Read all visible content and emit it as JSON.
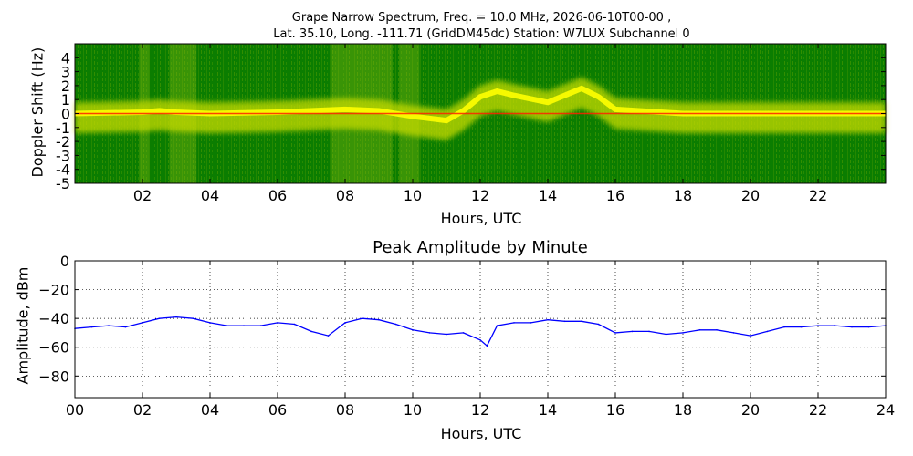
{
  "chart_data": [
    {
      "type": "heatmap",
      "title_line1": "Grape Narrow Spectrum, Freq. = 10.0 MHz, 2026-06-10T00-00 ,",
      "title_line2": "Lat.  35.10, Long. -111.71 (GridDM45dc) Station: W7LUX Subchannel 0",
      "xlabel": "Hours, UTC",
      "ylabel": "Doppler Shift (Hz)",
      "xlim": [
        0,
        24
      ],
      "ylim": [
        -5,
        5
      ],
      "x_ticks": [
        "02",
        "04",
        "06",
        "08",
        "10",
        "12",
        "14",
        "16",
        "18",
        "20",
        "22"
      ],
      "x_tick_values": [
        2,
        4,
        6,
        8,
        10,
        12,
        14,
        16,
        18,
        20,
        22
      ],
      "y_ticks": [
        "4",
        "3",
        "2",
        "1",
        "0",
        "-1",
        "-2",
        "-3",
        "-4",
        "-5"
      ],
      "y_tick_values": [
        4,
        3,
        2,
        1,
        0,
        -1,
        -2,
        -3,
        -4,
        -5
      ],
      "carrier_doppler_hz": [
        [
          0,
          0
        ],
        [
          2,
          0.1
        ],
        [
          2.5,
          0.2
        ],
        [
          3,
          0.1
        ],
        [
          4,
          0
        ],
        [
          6,
          0.1
        ],
        [
          8,
          0.3
        ],
        [
          9,
          0.2
        ],
        [
          10,
          -0.2
        ],
        [
          11,
          -0.5
        ],
        [
          11.5,
          0.2
        ],
        [
          12,
          1.2
        ],
        [
          12.5,
          1.6
        ],
        [
          13,
          1.3
        ],
        [
          14,
          0.8
        ],
        [
          15,
          1.8
        ],
        [
          15.5,
          1.2
        ],
        [
          16,
          0.3
        ],
        [
          18,
          0
        ],
        [
          20,
          0
        ],
        [
          22,
          0
        ],
        [
          24,
          0
        ]
      ],
      "colors": {
        "background": "#0b7d00",
        "mid": "#c8dc00",
        "high": "#ffff00",
        "peak": "#ff2000"
      },
      "grid": false
    },
    {
      "type": "line",
      "title": "Peak Amplitude by Minute",
      "xlabel": "Hours, UTC",
      "ylabel": "Amplitude, dBm",
      "xlim": [
        0,
        24
      ],
      "ylim": [
        -95,
        0
      ],
      "x_ticks": [
        "00",
        "02",
        "04",
        "06",
        "08",
        "10",
        "12",
        "14",
        "16",
        "18",
        "20",
        "22",
        "24"
      ],
      "x_tick_values": [
        0,
        2,
        4,
        6,
        8,
        10,
        12,
        14,
        16,
        18,
        20,
        22,
        24
      ],
      "y_ticks": [
        "0",
        "−20",
        "−40",
        "−60",
        "−80"
      ],
      "y_tick_values": [
        0,
        -20,
        -40,
        -60,
        -80
      ],
      "grid": true,
      "series": [
        {
          "color": "#0000ff",
          "x": [
            0,
            0.5,
            1,
            1.5,
            2,
            2.5,
            3,
            3.5,
            4,
            4.5,
            5,
            5.5,
            6,
            6.5,
            7,
            7.5,
            8,
            8.5,
            9,
            9.5,
            10,
            10.5,
            11,
            11.5,
            12,
            12.2,
            12.5,
            13,
            13.5,
            14,
            14.5,
            15,
            15.5,
            16,
            16.5,
            17,
            17.5,
            18,
            18.5,
            19,
            19.5,
            20,
            20.5,
            21,
            21.5,
            22,
            22.5,
            23,
            23.5,
            24
          ],
          "values": [
            -47,
            -46,
            -45,
            -46,
            -43,
            -40,
            -39,
            -40,
            -43,
            -45,
            -45,
            -45,
            -43,
            -44,
            -49,
            -52,
            -43,
            -40,
            -41,
            -44,
            -48,
            -50,
            -51,
            -50,
            -55,
            -59,
            -45,
            -43,
            -43,
            -41,
            -42,
            -42,
            -44,
            -50,
            -49,
            -49,
            -51,
            -50,
            -48,
            -48,
            -50,
            -52,
            -49,
            -46,
            -46,
            -45,
            -45,
            -46,
            -46,
            -45
          ]
        }
      ]
    }
  ]
}
